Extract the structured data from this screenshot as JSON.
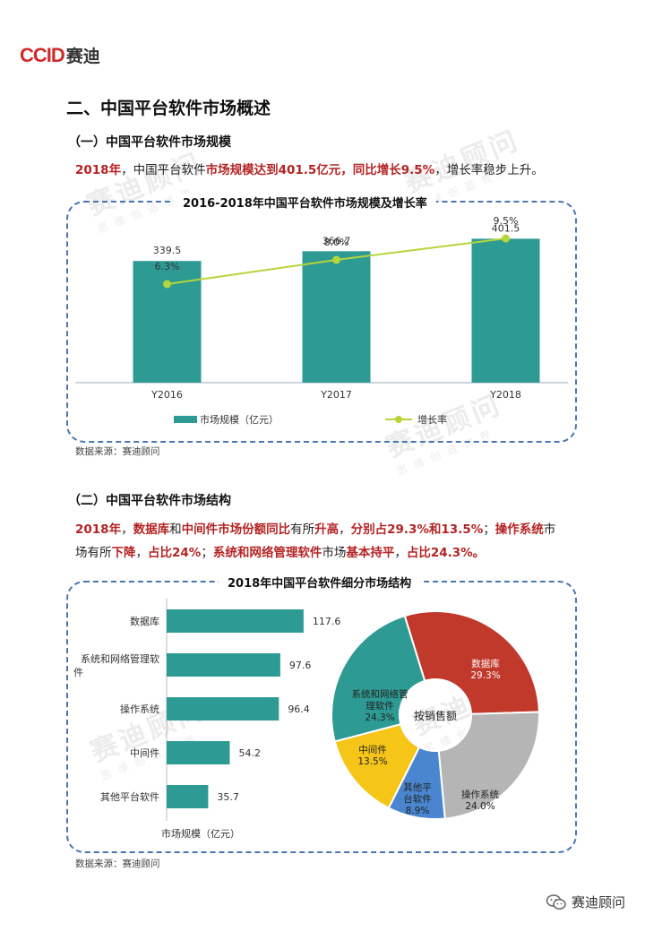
{
  "logo": {
    "brand": "CCID",
    "name": "赛迪"
  },
  "section_title": "二、中国平台软件市场概述",
  "sub1": {
    "title": "（一）中国平台软件市场规模",
    "lead_parts": [
      "2018年",
      "，中国平台软件",
      "市场规模达到401.5亿元，同比增长9.5%",
      "，增长率稳步上升。"
    ]
  },
  "chart1_title": "2016-2018年中国平台软件市场规模及增长率",
  "sub2": {
    "title": "（二）中国平台软件市场结构",
    "lead_parts": [
      "2018年",
      "，",
      "数据库",
      "和",
      "中间件市场份额同比",
      "有所",
      "升高",
      "，",
      "分别占29.3%和13.5%",
      "；",
      "操作系统",
      "市",
      "场有所",
      "下降",
      "，",
      "占比24%",
      "；",
      "系统和网络管理软件",
      "市场",
      "基本持平",
      "，",
      "占比24.3%。"
    ]
  },
  "chart2_title": "2018年中国平台软件细分市场结构",
  "source1": "数据来源：赛迪顾问",
  "source2": "数据来源：赛迪顾问",
  "watermark": {
    "main": "赛迪顾问",
    "sub": "思维创造世界"
  },
  "footer": {
    "account": "赛迪顾问"
  },
  "colors": {
    "teal": "#2e9a94",
    "line": "#b6d53a",
    "red": "#c0392b",
    "gray": "#b5b5b5",
    "blue": "#4a86cf",
    "yellow": "#f5c518",
    "border": "#4a76b0",
    "highlight": "#b52424"
  },
  "chart_data": [
    {
      "type": "bar",
      "title": "2016-2018年中国平台软件市场规模及增长率",
      "categories": [
        "Y2016",
        "Y2017",
        "Y2018"
      ],
      "series": [
        {
          "name": "市场规模（亿元）",
          "type": "bar",
          "values": [
            339.5,
            366.7,
            401.5
          ],
          "labels": [
            "339.5",
            "366.7",
            "401.5"
          ]
        },
        {
          "name": "增长率",
          "type": "line",
          "values": [
            6.3,
            8.0,
            9.5
          ],
          "labels": [
            "6.3%",
            "8.0%",
            "9.5%"
          ]
        }
      ],
      "legend": "bottom"
    },
    {
      "type": "bar",
      "orientation": "horizontal",
      "categories": [
        "数据库",
        "系统和网络管理软件",
        "操作系统",
        "中间件",
        "其他平台软件"
      ],
      "values": [
        117.6,
        97.6,
        96.4,
        54.2,
        35.7
      ],
      "labels": [
        "117.6",
        "97.6",
        "96.4",
        "54.2",
        "35.7"
      ],
      "xlabel": "市场规模（亿元）"
    },
    {
      "type": "pie",
      "donut": true,
      "center_label": "按销售额",
      "slices": [
        {
          "label": "数据库",
          "value": 29.3,
          "pct": "29.3%",
          "color": "#c0392b"
        },
        {
          "label": "操作系统",
          "value": 24.0,
          "pct": "24.0%",
          "color": "#b5b5b5"
        },
        {
          "label": "其他平台软件",
          "value": 8.9,
          "pct": "8.9%",
          "color": "#4a86cf"
        },
        {
          "label": "中间件",
          "value": 13.5,
          "pct": "13.5%",
          "color": "#f5c518"
        },
        {
          "label": "系统和网络管理软件",
          "value": 24.3,
          "pct": "24.3%",
          "color": "#2e9a94"
        }
      ]
    }
  ]
}
